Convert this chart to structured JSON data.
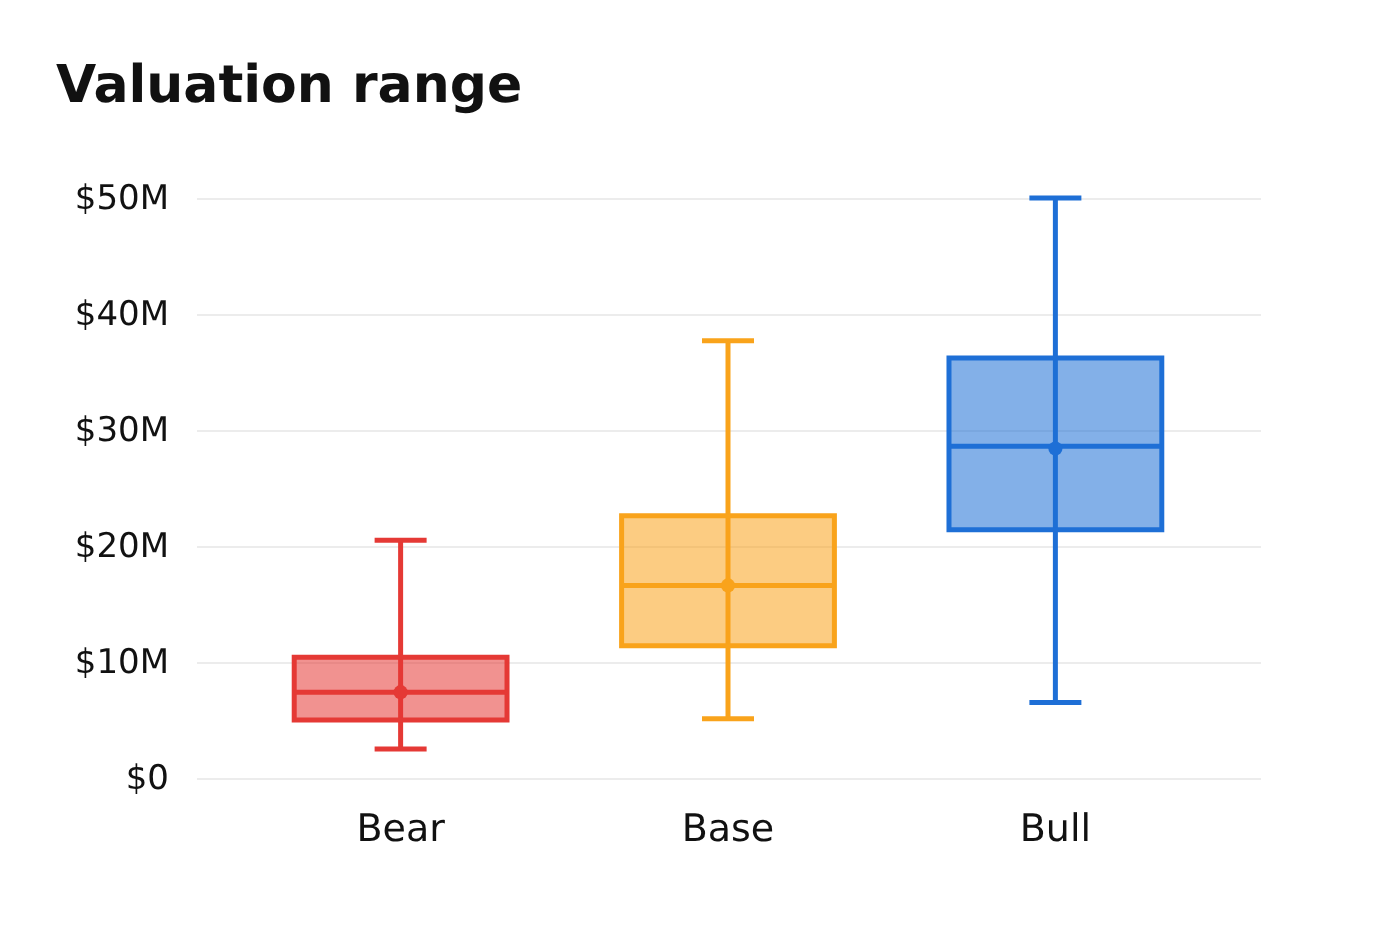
{
  "chart_data": {
    "type": "box",
    "title": "Valuation range",
    "categories": [
      "Bear",
      "Base",
      "Bull"
    ],
    "colors": [
      "#e53935",
      "#f9a31b",
      "#1e6fd6"
    ],
    "boxes": [
      {
        "low": 2.5,
        "q1": 5.0,
        "median": 7.4,
        "q3": 10.4,
        "high": 20.5,
        "mean": 7.4
      },
      {
        "low": 5.1,
        "q1": 11.4,
        "median": 16.6,
        "q3": 22.6,
        "high": 37.7,
        "mean": 16.6
      },
      {
        "low": 6.5,
        "q1": 21.4,
        "median": 28.6,
        "q3": 36.2,
        "high": 50,
        "mean": 28.4
      }
    ],
    "ylim": [
      0,
      50
    ],
    "yticks": [
      {
        "value": 0,
        "label": "$0"
      },
      {
        "value": 10,
        "label": "$10M"
      },
      {
        "value": 20,
        "label": "$20M"
      },
      {
        "value": 30,
        "label": "$30M"
      },
      {
        "value": 40,
        "label": "$40M"
      },
      {
        "value": 50,
        "label": "$50M"
      }
    ],
    "grid": "y"
  }
}
